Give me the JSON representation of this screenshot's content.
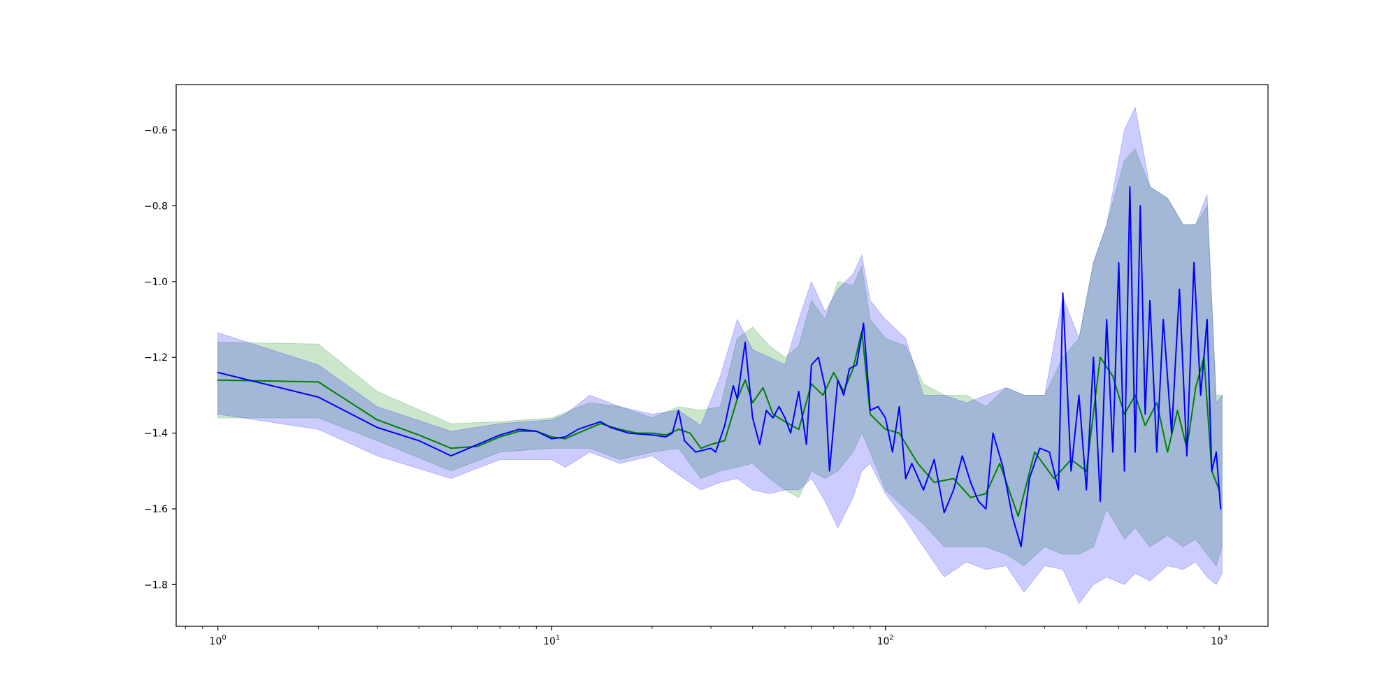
{
  "chart_data": {
    "type": "line",
    "title": "",
    "xlabel": "",
    "ylabel": "",
    "x_scale": "log",
    "xlim": [
      0.75,
      1400
    ],
    "ylim": [
      -1.91,
      -0.48
    ],
    "x_ticks": [
      1,
      10,
      100,
      1000
    ],
    "x_tick_labels": {
      "base": "10",
      "exponents": [
        "0",
        "1",
        "2",
        "3"
      ]
    },
    "y_ticks": [
      -1.8,
      -1.6,
      -1.4,
      -1.2,
      -1.0,
      -0.8,
      -0.6
    ],
    "y_tick_labels": [
      "−1.8",
      "−1.6",
      "−1.4",
      "−1.2",
      "−1.0",
      "−0.8",
      "−0.6"
    ],
    "grid": false,
    "legend": "none",
    "series": [
      {
        "color": "#008000",
        "band_color": "#008000",
        "band_opacity": 0.2,
        "points": [
          [
            1,
            -1.26
          ],
          [
            2,
            -1.265
          ],
          [
            3,
            -1.365
          ],
          [
            4,
            -1.405
          ],
          [
            5,
            -1.44
          ],
          [
            6,
            -1.435
          ],
          [
            7,
            -1.41
          ],
          [
            8,
            -1.395
          ],
          [
            9,
            -1.395
          ],
          [
            10,
            -1.41
          ],
          [
            11,
            -1.415
          ],
          [
            12,
            -1.4
          ],
          [
            14,
            -1.375
          ],
          [
            16,
            -1.39
          ],
          [
            18,
            -1.4
          ],
          [
            20,
            -1.4
          ],
          [
            22,
            -1.405
          ],
          [
            24,
            -1.39
          ],
          [
            26,
            -1.4
          ],
          [
            28,
            -1.44
          ],
          [
            30,
            -1.43
          ],
          [
            33,
            -1.42
          ],
          [
            36,
            -1.31
          ],
          [
            38,
            -1.26
          ],
          [
            40,
            -1.32
          ],
          [
            43,
            -1.28
          ],
          [
            46,
            -1.35
          ],
          [
            50,
            -1.37
          ],
          [
            55,
            -1.39
          ],
          [
            60,
            -1.27
          ],
          [
            65,
            -1.3
          ],
          [
            70,
            -1.24
          ],
          [
            75,
            -1.29
          ],
          [
            80,
            -1.23
          ],
          [
            85,
            -1.13
          ],
          [
            90,
            -1.35
          ],
          [
            100,
            -1.39
          ],
          [
            110,
            -1.4
          ],
          [
            125,
            -1.48
          ],
          [
            140,
            -1.53
          ],
          [
            160,
            -1.52
          ],
          [
            180,
            -1.57
          ],
          [
            200,
            -1.56
          ],
          [
            220,
            -1.48
          ],
          [
            250,
            -1.62
          ],
          [
            280,
            -1.45
          ],
          [
            320,
            -1.52
          ],
          [
            360,
            -1.47
          ],
          [
            400,
            -1.5
          ],
          [
            440,
            -1.2
          ],
          [
            480,
            -1.25
          ],
          [
            520,
            -1.35
          ],
          [
            560,
            -1.3
          ],
          [
            600,
            -1.38
          ],
          [
            650,
            -1.32
          ],
          [
            700,
            -1.45
          ],
          [
            750,
            -1.34
          ],
          [
            800,
            -1.44
          ],
          [
            850,
            -1.28
          ],
          [
            900,
            -1.2
          ],
          [
            950,
            -1.5
          ],
          [
            1000,
            -1.55
          ]
        ],
        "band": [
          [
            1,
            -1.36,
            -1.16
          ],
          [
            2,
            -1.36,
            -1.165
          ],
          [
            3,
            -1.42,
            -1.29
          ],
          [
            5,
            -1.5,
            -1.375
          ],
          [
            7,
            -1.45,
            -1.37
          ],
          [
            10,
            -1.44,
            -1.36
          ],
          [
            13,
            -1.44,
            -1.32
          ],
          [
            16,
            -1.47,
            -1.33
          ],
          [
            20,
            -1.45,
            -1.36
          ],
          [
            24,
            -1.44,
            -1.33
          ],
          [
            28,
            -1.52,
            -1.34
          ],
          [
            32,
            -1.5,
            -1.33
          ],
          [
            36,
            -1.49,
            -1.15
          ],
          [
            40,
            -1.48,
            -1.12
          ],
          [
            45,
            -1.52,
            -1.17
          ],
          [
            50,
            -1.55,
            -1.2
          ],
          [
            55,
            -1.57,
            -1.17
          ],
          [
            60,
            -1.5,
            -1.05
          ],
          [
            66,
            -1.52,
            -1.1
          ],
          [
            72,
            -1.5,
            -1.0
          ],
          [
            80,
            -1.45,
            -1.01
          ],
          [
            85,
            -1.4,
            -0.96
          ],
          [
            90,
            -1.45,
            -1.1
          ],
          [
            100,
            -1.55,
            -1.15
          ],
          [
            115,
            -1.6,
            -1.17
          ],
          [
            130,
            -1.64,
            -1.27
          ],
          [
            150,
            -1.7,
            -1.3
          ],
          [
            175,
            -1.7,
            -1.3
          ],
          [
            200,
            -1.7,
            -1.33
          ],
          [
            230,
            -1.72,
            -1.28
          ],
          [
            260,
            -1.75,
            -1.3
          ],
          [
            300,
            -1.7,
            -1.3
          ],
          [
            340,
            -1.72,
            -1.2
          ],
          [
            380,
            -1.72,
            -1.15
          ],
          [
            420,
            -1.7,
            -0.95
          ],
          [
            460,
            -1.6,
            -0.85
          ],
          [
            520,
            -1.68,
            -0.68
          ],
          [
            560,
            -1.65,
            -0.65
          ],
          [
            620,
            -1.7,
            -0.75
          ],
          [
            700,
            -1.67,
            -0.78
          ],
          [
            780,
            -1.7,
            -0.85
          ],
          [
            850,
            -1.68,
            -0.85
          ],
          [
            920,
            -1.72,
            -0.8
          ],
          [
            980,
            -1.75,
            -1.3
          ],
          [
            1020,
            -1.7,
            -1.3
          ]
        ]
      },
      {
        "color": "#0000ff",
        "band_color": "#0000ff",
        "band_opacity": 0.2,
        "points": [
          [
            1,
            -1.24
          ],
          [
            2,
            -1.305
          ],
          [
            3,
            -1.385
          ],
          [
            4,
            -1.42
          ],
          [
            5,
            -1.46
          ],
          [
            6,
            -1.43
          ],
          [
            7,
            -1.405
          ],
          [
            8,
            -1.39
          ],
          [
            9,
            -1.395
          ],
          [
            10,
            -1.415
          ],
          [
            11,
            -1.41
          ],
          [
            12,
            -1.39
          ],
          [
            14,
            -1.37
          ],
          [
            15,
            -1.385
          ],
          [
            17,
            -1.4
          ],
          [
            20,
            -1.405
          ],
          [
            22,
            -1.41
          ],
          [
            23,
            -1.4
          ],
          [
            24,
            -1.34
          ],
          [
            25,
            -1.42
          ],
          [
            27,
            -1.45
          ],
          [
            30,
            -1.44
          ],
          [
            31,
            -1.45
          ],
          [
            33,
            -1.38
          ],
          [
            35,
            -1.275
          ],
          [
            36,
            -1.31
          ],
          [
            38,
            -1.16
          ],
          [
            40,
            -1.36
          ],
          [
            42,
            -1.43
          ],
          [
            44,
            -1.34
          ],
          [
            46,
            -1.36
          ],
          [
            48,
            -1.33
          ],
          [
            50,
            -1.36
          ],
          [
            52,
            -1.4
          ],
          [
            55,
            -1.29
          ],
          [
            58,
            -1.43
          ],
          [
            60,
            -1.22
          ],
          [
            63,
            -1.2
          ],
          [
            66,
            -1.28
          ],
          [
            68,
            -1.5
          ],
          [
            72,
            -1.26
          ],
          [
            75,
            -1.3
          ],
          [
            78,
            -1.23
          ],
          [
            82,
            -1.22
          ],
          [
            86,
            -1.11
          ],
          [
            90,
            -1.34
          ],
          [
            95,
            -1.33
          ],
          [
            100,
            -1.36
          ],
          [
            105,
            -1.45
          ],
          [
            110,
            -1.33
          ],
          [
            115,
            -1.52
          ],
          [
            120,
            -1.48
          ],
          [
            130,
            -1.55
          ],
          [
            140,
            -1.47
          ],
          [
            150,
            -1.61
          ],
          [
            160,
            -1.55
          ],
          [
            170,
            -1.46
          ],
          [
            180,
            -1.53
          ],
          [
            190,
            -1.58
          ],
          [
            200,
            -1.6
          ],
          [
            210,
            -1.4
          ],
          [
            225,
            -1.49
          ],
          [
            240,
            -1.62
          ],
          [
            255,
            -1.7
          ],
          [
            270,
            -1.52
          ],
          [
            290,
            -1.44
          ],
          [
            310,
            -1.45
          ],
          [
            330,
            -1.55
          ],
          [
            340,
            -1.03
          ],
          [
            360,
            -1.5
          ],
          [
            380,
            -1.3
          ],
          [
            400,
            -1.55
          ],
          [
            420,
            -1.2
          ],
          [
            440,
            -1.58
          ],
          [
            460,
            -1.1
          ],
          [
            480,
            -1.45
          ],
          [
            500,
            -0.95
          ],
          [
            520,
            -1.5
          ],
          [
            540,
            -0.75
          ],
          [
            560,
            -1.45
          ],
          [
            580,
            -0.8
          ],
          [
            600,
            -1.35
          ],
          [
            620,
            -1.05
          ],
          [
            650,
            -1.45
          ],
          [
            680,
            -1.1
          ],
          [
            720,
            -1.4
          ],
          [
            760,
            -1.02
          ],
          [
            800,
            -1.46
          ],
          [
            840,
            -0.95
          ],
          [
            880,
            -1.3
          ],
          [
            920,
            -1.1
          ],
          [
            950,
            -1.5
          ],
          [
            980,
            -1.45
          ],
          [
            1010,
            -1.6
          ]
        ],
        "band": [
          [
            1,
            -1.35,
            -1.135
          ],
          [
            2,
            -1.39,
            -1.22
          ],
          [
            3,
            -1.46,
            -1.33
          ],
          [
            5,
            -1.52,
            -1.395
          ],
          [
            7,
            -1.47,
            -1.375
          ],
          [
            10,
            -1.47,
            -1.365
          ],
          [
            11,
            -1.49,
            -1.35
          ],
          [
            13,
            -1.45,
            -1.3
          ],
          [
            16,
            -1.48,
            -1.33
          ],
          [
            20,
            -1.46,
            -1.35
          ],
          [
            24,
            -1.51,
            -1.34
          ],
          [
            28,
            -1.55,
            -1.38
          ],
          [
            32,
            -1.53,
            -1.25
          ],
          [
            36,
            -1.52,
            -1.1
          ],
          [
            40,
            -1.55,
            -1.18
          ],
          [
            45,
            -1.56,
            -1.2
          ],
          [
            50,
            -1.55,
            -1.22
          ],
          [
            55,
            -1.55,
            -1.1
          ],
          [
            60,
            -1.52,
            -1.0
          ],
          [
            66,
            -1.58,
            -1.08
          ],
          [
            72,
            -1.65,
            -1.02
          ],
          [
            80,
            -1.57,
            -0.98
          ],
          [
            85,
            -1.5,
            -0.93
          ],
          [
            90,
            -1.48,
            -1.05
          ],
          [
            100,
            -1.56,
            -1.1
          ],
          [
            115,
            -1.63,
            -1.15
          ],
          [
            130,
            -1.7,
            -1.3
          ],
          [
            150,
            -1.78,
            -1.3
          ],
          [
            175,
            -1.74,
            -1.32
          ],
          [
            200,
            -1.76,
            -1.3
          ],
          [
            230,
            -1.75,
            -1.28
          ],
          [
            260,
            -1.82,
            -1.3
          ],
          [
            300,
            -1.75,
            -1.3
          ],
          [
            340,
            -1.76,
            -1.04
          ],
          [
            380,
            -1.85,
            -1.15
          ],
          [
            420,
            -1.8,
            -0.95
          ],
          [
            460,
            -1.78,
            -0.85
          ],
          [
            520,
            -1.8,
            -0.6
          ],
          [
            560,
            -1.77,
            -0.54
          ],
          [
            620,
            -1.79,
            -0.75
          ],
          [
            700,
            -1.75,
            -0.78
          ],
          [
            780,
            -1.76,
            -0.85
          ],
          [
            850,
            -1.74,
            -0.85
          ],
          [
            920,
            -1.78,
            -0.77
          ],
          [
            980,
            -1.8,
            -1.32
          ],
          [
            1020,
            -1.77,
            -1.3
          ]
        ]
      }
    ]
  }
}
